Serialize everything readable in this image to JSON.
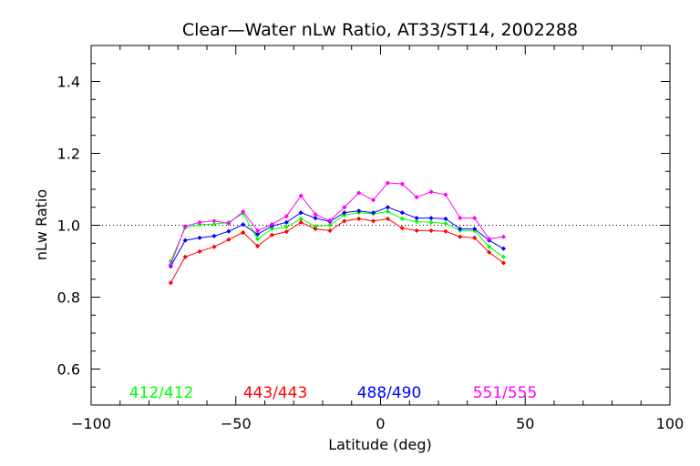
{
  "chart_data": {
    "type": "line",
    "title": "Clear—Water nLw Ratio, AT33/ST14, 2002288",
    "xlabel": "Latitude (deg)",
    "ylabel": "nLw Ratio",
    "xlim": [
      -100,
      100
    ],
    "ylim": [
      0.5,
      1.5
    ],
    "xticks": [
      -100,
      -50,
      0,
      50,
      100
    ],
    "xtick_labels": [
      "−100",
      "−50",
      "0",
      "50",
      "100"
    ],
    "yticks": [
      0.6,
      0.8,
      1.0,
      1.2,
      1.4
    ],
    "ytick_labels": [
      "0.6",
      "0.8",
      "1.0",
      "1.2",
      "1.4"
    ],
    "reference_line": 1.0,
    "legend_placement": "bottom-left",
    "x": [
      -72.5,
      -67.5,
      -62.5,
      -57.5,
      -52.5,
      -47.5,
      -42.5,
      -37.5,
      -32.5,
      -27.5,
      -22.5,
      -17.5,
      -12.5,
      -7.5,
      -2.5,
      2.5,
      7.5,
      12.5,
      17.5,
      22.5,
      27.5,
      32.5,
      37.5,
      42.5
    ],
    "series": [
      {
        "name": "412/412",
        "color": "#00ff00",
        "values": [
          0.9,
          0.993,
          1.002,
          1.003,
          1.008,
          1.033,
          0.962,
          0.99,
          0.995,
          1.018,
          0.997,
          1.0,
          1.028,
          1.035,
          1.032,
          1.038,
          1.018,
          1.01,
          1.008,
          1.005,
          0.985,
          0.985,
          0.94,
          0.912
        ]
      },
      {
        "name": "443/443",
        "color": "#ff0000",
        "values": [
          0.84,
          0.912,
          0.927,
          0.94,
          0.96,
          0.98,
          0.942,
          0.973,
          0.982,
          1.008,
          0.99,
          0.985,
          1.012,
          1.018,
          1.012,
          1.018,
          0.992,
          0.985,
          0.985,
          0.983,
          0.968,
          0.965,
          0.925,
          0.895
        ]
      },
      {
        "name": "488/490",
        "color": "#0000ff",
        "values": [
          0.886,
          0.958,
          0.965,
          0.97,
          0.983,
          1.002,
          0.975,
          0.998,
          1.008,
          1.035,
          1.02,
          1.01,
          1.035,
          1.04,
          1.035,
          1.05,
          1.035,
          1.02,
          1.02,
          1.018,
          0.99,
          0.99,
          0.958,
          0.935
        ]
      },
      {
        "name": "551/555",
        "color": "#ff00ff",
        "values": [
          0.89,
          0.997,
          1.008,
          1.012,
          1.005,
          1.038,
          0.985,
          1.003,
          1.025,
          1.082,
          1.03,
          1.013,
          1.05,
          1.09,
          1.07,
          1.118,
          1.115,
          1.078,
          1.093,
          1.085,
          1.02,
          1.02,
          0.962,
          0.968
        ]
      }
    ]
  }
}
